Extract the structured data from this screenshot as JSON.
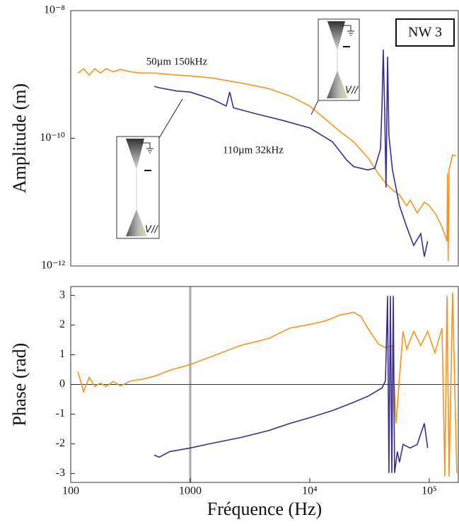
{
  "chart_data": [
    {
      "type": "line",
      "ylabel": "Amplitude (m)",
      "log_x": true,
      "log_y": true,
      "xlim": [
        100,
        175000
      ],
      "ylim": [
        1e-12,
        1e-08
      ],
      "yticks": [
        {
          "value": 1e-08,
          "label": "10⁻⁸"
        },
        {
          "value": 1e-10,
          "label": "10⁻¹⁰"
        },
        {
          "value": 1e-12,
          "label": "10⁻¹²"
        }
      ],
      "annotation": "NW 3",
      "inset_labels": [
        "V//",
        "V//"
      ],
      "series": [
        {
          "name": "50µm 150kHz",
          "color": "#f7941d",
          "x": [
            115,
            128,
            143,
            159,
            177,
            198,
            227,
            260,
            318,
            391,
            513,
            674,
            1000,
            1525,
            2630,
            4540,
            6830,
            10000,
            13500,
            17700,
            23300,
            30600,
            37500,
            43000,
            49200,
            56400,
            64700,
            69200,
            79300,
            91000,
            100000,
            111500,
            128000,
            140700,
            142000,
            144000,
            146600,
            156800,
            168000
          ],
          "values": [
            1.05e-09,
            1.23e-09,
            9.8e-10,
            1.23e-09,
            1.05e-09,
            1.23e-09,
            1.1e-09,
            1.2e-09,
            1.1e-09,
            1.05e-09,
            1.05e-09,
            1e-09,
            9.5e-10,
            8.8e-10,
            7.4e-10,
            6e-10,
            4.6e-10,
            3.2e-10,
            2e-10,
            1.3e-10,
            8.8e-11,
            5e-11,
            2.8e-11,
            2e-11,
            1.55e-11,
            1.3e-11,
            8.8e-12,
            1.08e-11,
            6.8e-12,
            1e-11,
            8.8e-12,
            6.8e-12,
            4.1e-12,
            2.45e-12,
            2.8e-11,
            1.2e-12,
            3.2e-11,
            5.5e-11,
            5.3e-11
          ]
        },
        {
          "name": "110µm 32kHz",
          "color": "#3b2d8e",
          "x": [
            500,
            550,
            773,
            1000,
            1525,
            2000,
            2140,
            2300,
            3450,
            5960,
            10000,
            15500,
            20300,
            23300,
            30600,
            35000,
            39100,
            40200,
            41200,
            42400,
            43500,
            44800,
            46000,
            49200,
            56400,
            64700,
            74100,
            84900,
            91000,
            97000
          ],
          "values": [
            6.5e-10,
            6.2e-10,
            5.5e-10,
            5.3e-10,
            4.1e-10,
            3.2e-10,
            5.3e-10,
            3e-10,
            2.45e-10,
            1.9e-10,
            1.45e-10,
            8.8e-11,
            4.6e-11,
            3.6e-11,
            3.2e-11,
            3.4e-11,
            6.8e-11,
            3.2e-10,
            2.45e-09,
            2.45e-10,
            1.7e-11,
            1.9e-09,
            1.1e-10,
            3.2e-11,
            8.8e-12,
            4.1e-12,
            2.1e-12,
            3.2e-12,
            1.4e-12,
            2.45e-12
          ]
        }
      ]
    },
    {
      "type": "line",
      "ylabel": "Phase (rad)",
      "xlabel": "Fréquence (Hz)",
      "log_x": true,
      "xlim": [
        100,
        175000
      ],
      "ylim": [
        -3.3,
        3.3
      ],
      "xticks": [
        100,
        1000,
        {
          "value": 10000,
          "label": "10⁴"
        },
        {
          "value": 100000,
          "label": "10⁵"
        }
      ],
      "yticks": [
        -3,
        -2,
        -1,
        0,
        1,
        2,
        3
      ],
      "hline": 0,
      "vline": 1000,
      "series": [
        {
          "name": "50µm 150kHz",
          "color": "#f7941d",
          "x": [
            115,
            128,
            143,
            159,
            177,
            198,
            227,
            260,
            318,
            391,
            513,
            674,
            1000,
            1525,
            2630,
            4540,
            6830,
            10000,
            13500,
            17700,
            23300,
            26800,
            30600,
            37500,
            43000,
            49200,
            52700,
            56400,
            60400,
            64700,
            74100,
            84900,
            97000,
            111500,
            128000,
            135000,
            140700,
            146600,
            156800,
            170000
          ],
          "values": [
            0.43,
            -0.24,
            0.24,
            -0.07,
            0.05,
            -0.07,
            0.1,
            -0.05,
            0.12,
            0.17,
            0.29,
            0.48,
            0.67,
            0.95,
            1.31,
            1.55,
            1.9,
            2.02,
            2.14,
            2.33,
            2.43,
            2.29,
            1.9,
            1.36,
            1.24,
            1.31,
            -1.31,
            0.24,
            1.79,
            1.19,
            1.79,
            1.31,
            1.79,
            1.07,
            1.9,
            -3.1,
            2.98,
            -3.1,
            3.1,
            -2.98
          ]
        },
        {
          "name": "110µm 32kHz",
          "color": "#3b2d8e",
          "x": [
            500,
            550,
            674,
            1000,
            1525,
            2630,
            4540,
            6830,
            10000,
            15500,
            23300,
            30600,
            40200,
            43000,
            44800,
            46000,
            47300,
            48600,
            50000,
            51300,
            54100,
            56400,
            60400,
            69200,
            79300,
            91000,
            97000
          ],
          "values": [
            -2.38,
            -2.45,
            -2.26,
            -2.14,
            -1.98,
            -1.79,
            -1.55,
            -1.31,
            -1.12,
            -0.88,
            -0.6,
            -0.4,
            -0.12,
            0.12,
            2.98,
            -2.98,
            2.98,
            -2.98,
            2.98,
            -2.98,
            -2.26,
            -2.62,
            -2.02,
            -2.14,
            -2.02,
            -1.31,
            -2.14
          ]
        }
      ]
    }
  ]
}
